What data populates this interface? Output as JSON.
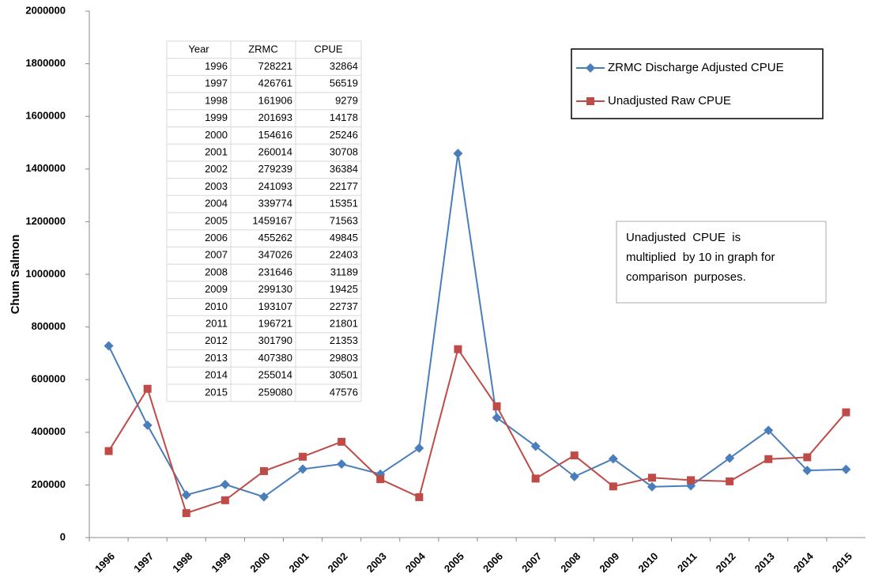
{
  "chart_data": {
    "type": "line",
    "y_label": "Chum Salmon",
    "categories": [
      "1996",
      "1997",
      "1998",
      "1999",
      "2000",
      "2001",
      "2002",
      "2003",
      "2004",
      "2005",
      "2006",
      "2007",
      "2008",
      "2009",
      "2010",
      "2011",
      "2012",
      "2013",
      "2014",
      "2015"
    ],
    "series": [
      {
        "name": "ZRMC Discharge Adjusted CPUE",
        "color": "#4a7ebb",
        "marker": "diamond",
        "values": [
          728221,
          426761,
          161906,
          201693,
          154616,
          260014,
          279239,
          241093,
          339774,
          1459167,
          455262,
          347026,
          231646,
          299130,
          193107,
          196721,
          301790,
          407380,
          255014,
          259080
        ]
      },
      {
        "name": "Unadjusted Raw CPUE",
        "color": "#be4b48",
        "marker": "square",
        "values": [
          328640,
          565190,
          92790,
          141780,
          252460,
          307080,
          363840,
          221770,
          153510,
          715630,
          498450,
          224030,
          311890,
          194250,
          227370,
          218010,
          213530,
          298030,
          305010,
          475760
        ]
      }
    ],
    "ylim": [
      0,
      2000000
    ],
    "yticks": [
      0,
      200000,
      400000,
      600000,
      800000,
      1000000,
      1200000,
      1400000,
      1600000,
      1800000,
      2000000
    ],
    "grid": false,
    "legend": "top-right",
    "annotation": [
      "Unadjusted  CPUE  is",
      "multiplied  by 10 in graph for",
      "comparison  purposes."
    ],
    "table": {
      "header": [
        "Year",
        "ZRMC",
        "CPUE"
      ],
      "rows": [
        [
          1996,
          728221,
          32864
        ],
        [
          1997,
          426761,
          56519
        ],
        [
          1998,
          161906,
          9279
        ],
        [
          1999,
          201693,
          14178
        ],
        [
          2000,
          154616,
          25246
        ],
        [
          2001,
          260014,
          30708
        ],
        [
          2002,
          279239,
          36384
        ],
        [
          2003,
          241093,
          22177
        ],
        [
          2004,
          339774,
          15351
        ],
        [
          2005,
          1459167,
          71563
        ],
        [
          2006,
          455262,
          49845
        ],
        [
          2007,
          347026,
          22403
        ],
        [
          2008,
          231646,
          31189
        ],
        [
          2009,
          299130,
          19425
        ],
        [
          2010,
          193107,
          22737
        ],
        [
          2011,
          196721,
          21801
        ],
        [
          2012,
          301790,
          21353
        ],
        [
          2013,
          407380,
          29803
        ],
        [
          2014,
          255014,
          30501
        ],
        [
          2015,
          259080,
          47576
        ]
      ]
    }
  }
}
